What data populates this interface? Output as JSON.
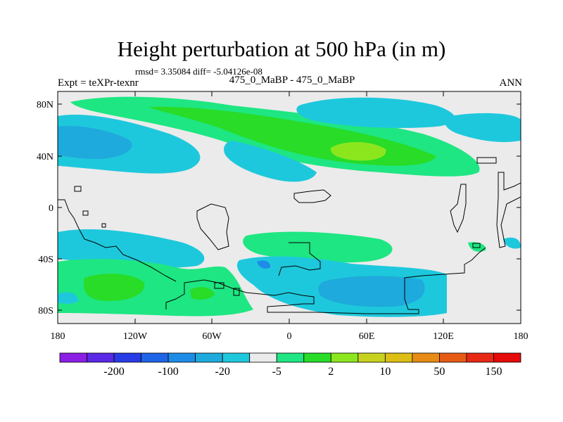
{
  "header": {
    "title": "Height perturbation at 500 hPa (in m)",
    "stats": "rmsd= 3.35084 diff= -5.04126e-08",
    "experiment": "Expt = teXPr-texnr",
    "period": "475_0_MaBP - 475_0_MaBP",
    "season": "ANN"
  },
  "axes": {
    "y_ticks": [
      "80N",
      "40N",
      "0",
      "40S",
      "80S"
    ],
    "x_ticks": [
      "180",
      "120W",
      "60W",
      "0",
      "60E",
      "120E",
      "180"
    ]
  },
  "colorbar": {
    "colors": [
      "#8c1ee6",
      "#5a28e6",
      "#283ce6",
      "#1e64e6",
      "#1e8ce6",
      "#1eaadc",
      "#1ec8dc",
      "#ebebeb",
      "#1ee682",
      "#28dc28",
      "#8ce61e",
      "#c8d21e",
      "#dcbe14",
      "#e68c14",
      "#e65a14",
      "#e62814",
      "#e60a0a"
    ],
    "labels": [
      "-200",
      "-100",
      "-20",
      "-5",
      "2",
      "10",
      "50",
      "150"
    ]
  },
  "legend_colors": {
    "neg_light": "#1ec8dc",
    "neg_mid": "#1eaadc",
    "neg_dark": "#1e8ce6",
    "pos_light": "#1ee682",
    "pos_mid": "#28dc28",
    "pos_high": "#8ce61e",
    "neutral": "#ebebeb"
  }
}
